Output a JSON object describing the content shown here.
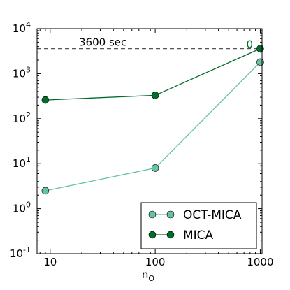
{
  "chart_data": {
    "type": "line",
    "xscale": "log",
    "yscale": "log",
    "xlabel_base": "n",
    "xlabel_sub": "O",
    "ylabel": "",
    "title": "",
    "xlim": [
      7.5,
      1040
    ],
    "ylim": [
      0.1,
      10000
    ],
    "x_ticks": [
      {
        "value": 10,
        "label": "10"
      },
      {
        "value": 100,
        "label": "100"
      },
      {
        "value": 1000,
        "label": "1000"
      }
    ],
    "y_ticks": [
      {
        "value": 0.1,
        "base": "10",
        "exp": "-1"
      },
      {
        "value": 1,
        "base": "10",
        "exp": "0"
      },
      {
        "value": 10,
        "base": "10",
        "exp": "1"
      },
      {
        "value": 100,
        "base": "10",
        "exp": "2"
      },
      {
        "value": 1000,
        "base": "10",
        "exp": "3"
      },
      {
        "value": 10000,
        "base": "10",
        "exp": "4"
      }
    ],
    "series": [
      {
        "name": "OCT-MICA",
        "color": "#66c2a4",
        "x": [
          9,
          100,
          1000
        ],
        "y": [
          2.5,
          8,
          1800
        ]
      },
      {
        "name": "MICA",
        "color": "#006d2c",
        "x": [
          9,
          100,
          1000
        ],
        "y": [
          260,
          330,
          3600
        ]
      }
    ],
    "reference_line": {
      "y": 3600,
      "label": "3600 sec",
      "style": "dashed"
    },
    "annotations": [
      {
        "x": 1000,
        "y": 3600,
        "text": "0",
        "color": "#006d2c"
      }
    ],
    "legend": {
      "position": "bottom-right"
    },
    "grid": false
  }
}
